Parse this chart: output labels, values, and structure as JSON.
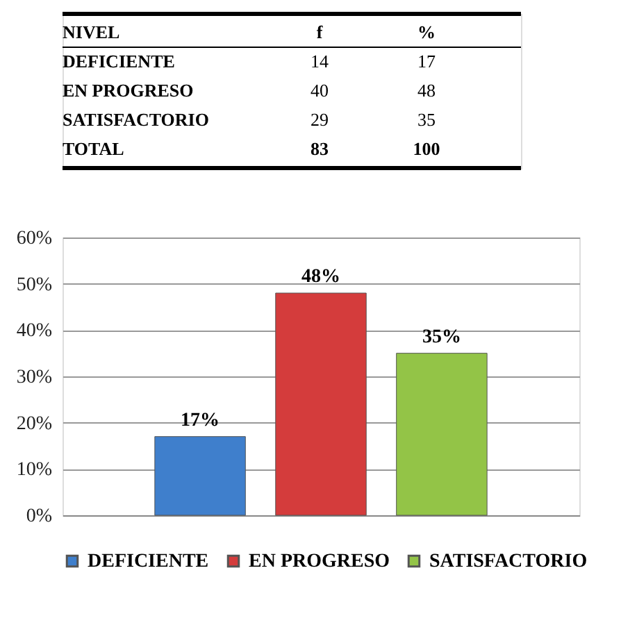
{
  "chart_data": [
    {
      "type": "other",
      "annotations": [
        "NIVEL",
        "f",
        "%",
        "DEFICIENTE",
        "14",
        "17",
        "EN PROGRESO",
        "40",
        "48",
        "SATISFACTORIO",
        "29",
        "35",
        "TOTAL",
        "83",
        "100"
      ]
    },
    {
      "type": "bar",
      "categories": [
        null
      ],
      "series": [
        {
          "name": "DEFICIENTE",
          "color": "#3f7fcc",
          "values": [
            17
          ],
          "value_labels": [
            "17%"
          ]
        },
        {
          "name": "EN PROGRESO",
          "color": "#d43c3c",
          "values": [
            48
          ],
          "value_labels": [
            "48%"
          ]
        },
        {
          "name": "SATISFACTORIO",
          "color": "#93c447",
          "values": [
            35
          ],
          "value_labels": [
            "35%"
          ]
        }
      ],
      "ylim": [
        0,
        60
      ],
      "yticks": [
        {
          "value": 0,
          "label": "0%"
        },
        {
          "value": 10,
          "label": "10%"
        },
        {
          "value": 20,
          "label": "20%"
        },
        {
          "value": 30,
          "label": "30%"
        },
        {
          "value": 40,
          "label": "40%"
        },
        {
          "value": 50,
          "label": "50%"
        },
        {
          "value": 60,
          "label": "60%"
        }
      ],
      "grid": "y",
      "legend": "bottom",
      "tick_labels": "y"
    }
  ]
}
